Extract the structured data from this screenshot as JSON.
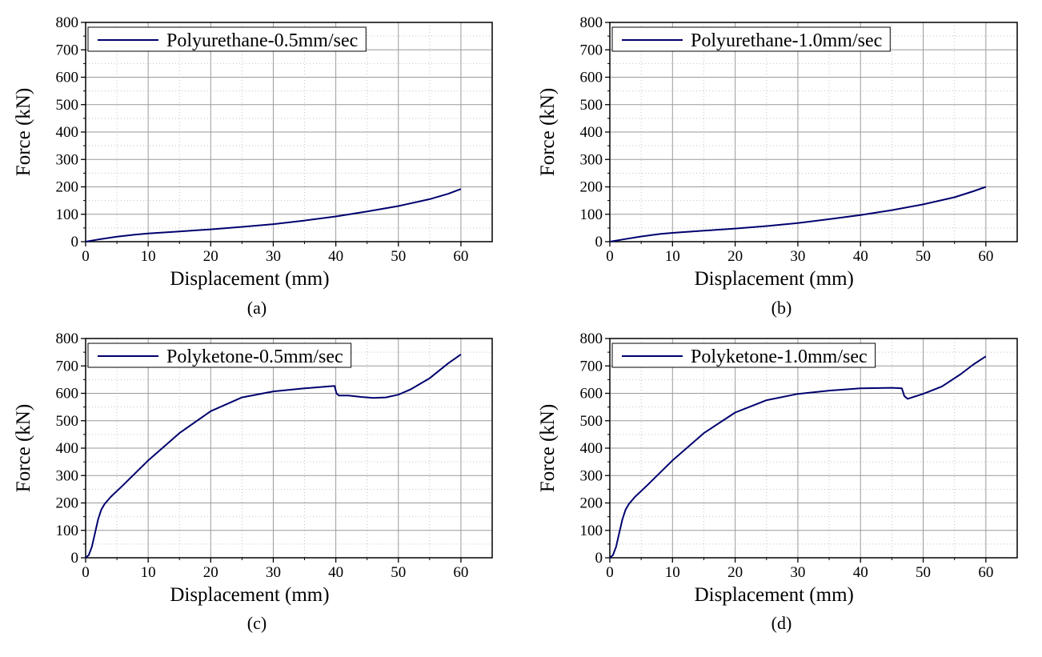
{
  "figure": {
    "panels": [
      "(a)",
      "(b)",
      "(c)",
      "(d)"
    ]
  },
  "chart_data": [
    {
      "type": "line",
      "caption": "(a)",
      "xlabel": "Displacement (mm)",
      "ylabel": "Force (kN)",
      "xlim": [
        0,
        65
      ],
      "ylim": [
        0,
        800
      ],
      "xticks": [
        0,
        10,
        20,
        30,
        40,
        50,
        60
      ],
      "yticks": [
        0,
        100,
        200,
        300,
        400,
        500,
        600,
        700,
        800
      ],
      "grid": true,
      "legend_position": "top-left",
      "color": "#00006e",
      "series": [
        {
          "name": "Polyurethane-0.5mm/sec",
          "x": [
            0,
            2,
            5,
            8,
            10,
            15,
            20,
            25,
            30,
            35,
            40,
            45,
            50,
            55,
            58,
            60
          ],
          "y": [
            0,
            8,
            18,
            26,
            30,
            37,
            45,
            54,
            64,
            77,
            92,
            110,
            130,
            155,
            175,
            192
          ]
        }
      ]
    },
    {
      "type": "line",
      "caption": "(b)",
      "xlabel": "Displacement (mm)",
      "ylabel": "Force (kN)",
      "xlim": [
        0,
        65
      ],
      "ylim": [
        0,
        800
      ],
      "xticks": [
        0,
        10,
        20,
        30,
        40,
        50,
        60
      ],
      "yticks": [
        0,
        100,
        200,
        300,
        400,
        500,
        600,
        700,
        800
      ],
      "grid": true,
      "legend_position": "top-left",
      "color": "#00006e",
      "series": [
        {
          "name": "Polyurethane-1.0mm/sec",
          "x": [
            0,
            2,
            5,
            8,
            10,
            15,
            20,
            25,
            30,
            35,
            40,
            45,
            50,
            55,
            58,
            60
          ],
          "y": [
            0,
            8,
            19,
            28,
            32,
            40,
            48,
            57,
            68,
            82,
            97,
            115,
            136,
            162,
            184,
            200
          ]
        }
      ]
    },
    {
      "type": "line",
      "caption": "(c)",
      "xlabel": "Displacement (mm)",
      "ylabel": "Force (kN)",
      "xlim": [
        0,
        65
      ],
      "ylim": [
        0,
        800
      ],
      "xticks": [
        0,
        10,
        20,
        30,
        40,
        50,
        60
      ],
      "yticks": [
        0,
        100,
        200,
        300,
        400,
        500,
        600,
        700,
        800
      ],
      "grid": true,
      "legend_position": "top-left",
      "color": "#00006e",
      "series": [
        {
          "name": "Polyketone-0.5mm/sec",
          "x": [
            0,
            0.5,
            1,
            1.5,
            2,
            2.5,
            3,
            4,
            6,
            8,
            10,
            15,
            20,
            25,
            30,
            35,
            39.8,
            40.1,
            40.5,
            42,
            44,
            46,
            48,
            50,
            52,
            55,
            58,
            60
          ],
          "y": [
            0,
            10,
            40,
            90,
            140,
            175,
            195,
            222,
            265,
            310,
            355,
            455,
            535,
            585,
            607,
            618,
            627,
            600,
            592,
            592,
            587,
            583,
            585,
            595,
            615,
            655,
            710,
            742
          ]
        }
      ]
    },
    {
      "type": "line",
      "caption": "(d)",
      "xlabel": "Displacement (mm)",
      "ylabel": "Force (kN)",
      "xlim": [
        0,
        65
      ],
      "ylim": [
        0,
        800
      ],
      "xticks": [
        0,
        10,
        20,
        30,
        40,
        50,
        60
      ],
      "yticks": [
        0,
        100,
        200,
        300,
        400,
        500,
        600,
        700,
        800
      ],
      "grid": true,
      "legend_position": "top-left",
      "color": "#00006e",
      "series": [
        {
          "name": "Polyketone-1.0mm/sec",
          "x": [
            0,
            0.5,
            1,
            1.5,
            2,
            2.5,
            3,
            4,
            6,
            8,
            10,
            15,
            20,
            25,
            30,
            35,
            40,
            45,
            46.6,
            47.0,
            47.5,
            50,
            53,
            56,
            58,
            60
          ],
          "y": [
            0,
            10,
            40,
            90,
            140,
            175,
            195,
            222,
            265,
            310,
            355,
            455,
            530,
            575,
            598,
            610,
            618,
            620,
            618,
            590,
            580,
            598,
            625,
            670,
            705,
            735
          ]
        }
      ]
    }
  ]
}
